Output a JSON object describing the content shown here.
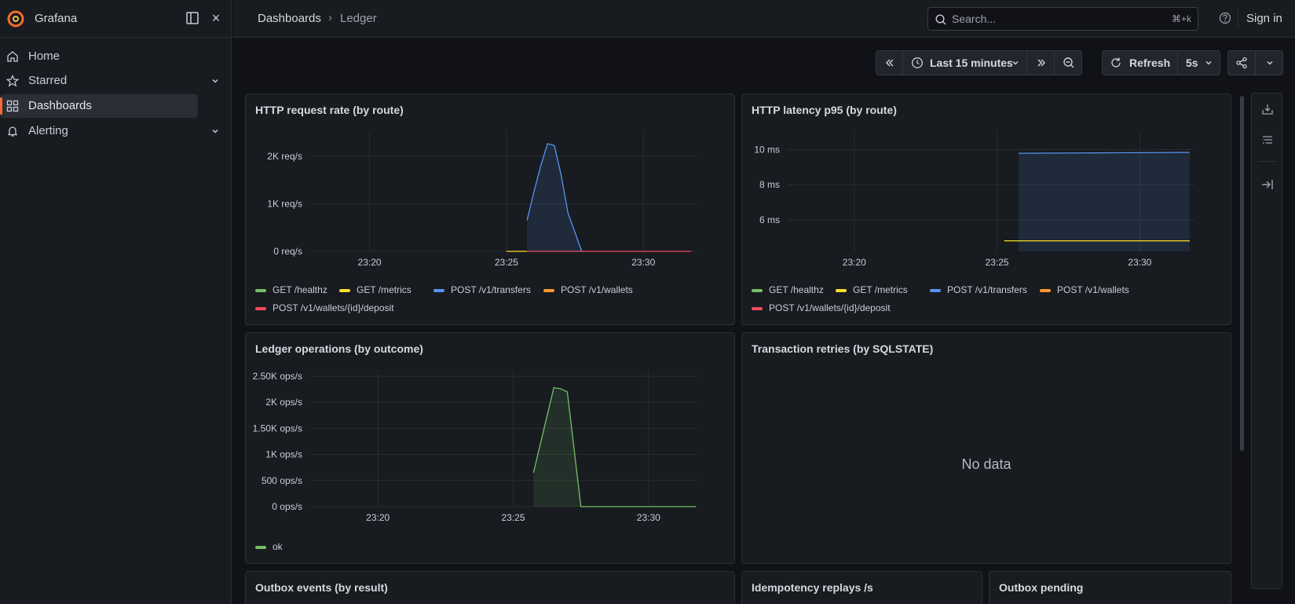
{
  "app": {
    "name": "Grafana",
    "sign_in": "Sign in",
    "close_symbol": "×"
  },
  "sidebar": {
    "items": [
      {
        "label": "Home",
        "icon": "home-icon",
        "active": false,
        "expandable": false
      },
      {
        "label": "Starred",
        "icon": "star-icon",
        "active": false,
        "expandable": true
      },
      {
        "label": "Dashboards",
        "icon": "apps-icon",
        "active": true,
        "expandable": false
      },
      {
        "label": "Alerting",
        "icon": "bell-icon",
        "active": false,
        "expandable": true
      }
    ]
  },
  "breadcrumb": {
    "items": [
      "Dashboards",
      "Ledger"
    ],
    "separator": "›"
  },
  "search": {
    "placeholder": "Search...",
    "shortcut": "⌘+k"
  },
  "toolbar": {
    "time_range": "Last 15 minutes",
    "refresh_label": "Refresh",
    "refresh_interval": "5s"
  },
  "colors": {
    "green": "#73bf69",
    "yellow": "#fade2a",
    "blue": "#5794f2",
    "orange": "#ff9830",
    "red": "#f2495c",
    "accent": "#f66b33"
  },
  "panels": [
    {
      "title": "HTTP request rate (by route)",
      "legend": [
        {
          "label": "GET /healthz",
          "color": "#73bf69"
        },
        {
          "label": "GET /metrics",
          "color": "#fade2a"
        },
        {
          "label": "POST /v1/transfers",
          "color": "#5794f2"
        },
        {
          "label": "POST /v1/wallets",
          "color": "#ff9830"
        },
        {
          "label": "POST /v1/wallets/{id}/deposit",
          "color": "#f2495c"
        }
      ]
    },
    {
      "title": "HTTP latency p95 (by route)",
      "legend": [
        {
          "label": "GET /healthz",
          "color": "#73bf69"
        },
        {
          "label": "GET /metrics",
          "color": "#fade2a"
        },
        {
          "label": "POST /v1/transfers",
          "color": "#5794f2"
        },
        {
          "label": "POST /v1/wallets",
          "color": "#ff9830"
        },
        {
          "label": "POST /v1/wallets/{id}/deposit",
          "color": "#f2495c"
        }
      ]
    },
    {
      "title": "Ledger operations (by outcome)",
      "legend": [
        {
          "label": "ok",
          "color": "#73bf69"
        }
      ]
    },
    {
      "title": "Transaction retries (by SQLSTATE)",
      "no_data": "No data"
    },
    {
      "title": "Outbox events (by result)"
    },
    {
      "title": "Idempotency replays /s"
    },
    {
      "title": "Outbox pending"
    }
  ],
  "chart_data": [
    {
      "type": "line",
      "x_ticks": [
        "23:20",
        "23:25",
        "23:30"
      ],
      "y_ticks": [
        "0 req/s",
        "1K req/s",
        "2K req/s"
      ],
      "ylim": [
        0,
        2400
      ],
      "series": [
        {
          "name": "POST /v1/transfers",
          "color": "#5794f2",
          "fill": true,
          "x": [
            "23:25:45",
            "23:26:00",
            "23:26:15",
            "23:26:30",
            "23:26:45",
            "23:27:00",
            "23:27:15",
            "23:27:45"
          ],
          "y": [
            650,
            1250,
            1800,
            2270,
            2230,
            1600,
            800,
            0
          ]
        },
        {
          "name": "GET /metrics",
          "color": "#fade2a",
          "x": [
            "23:25:00",
            "23:25:45"
          ],
          "y": [
            0,
            0
          ]
        },
        {
          "name": "POST /v1/wallets/{id}/deposit",
          "color": "#f2495c",
          "x": [
            "23:25:45",
            "23:31:45"
          ],
          "y": [
            0,
            0
          ]
        }
      ]
    },
    {
      "type": "area",
      "x_ticks": [
        "23:20",
        "23:25",
        "23:30"
      ],
      "y_ticks": [
        "6 ms",
        "8 ms",
        "10 ms"
      ],
      "ylim": [
        4.2,
        10.7
      ],
      "series": [
        {
          "name": "POST /v1/transfers",
          "color": "#5794f2",
          "fill": true,
          "x": [
            "23:25:45",
            "23:31:45"
          ],
          "y": [
            9.8,
            9.85
          ]
        },
        {
          "name": "GET /metrics",
          "color": "#fade2a",
          "x": [
            "23:25:15",
            "23:31:45"
          ],
          "y": [
            4.8,
            4.8
          ]
        }
      ]
    },
    {
      "type": "line",
      "x_ticks": [
        "23:20",
        "23:25",
        "23:30"
      ],
      "y_ticks": [
        "0 ops/s",
        "500 ops/s",
        "1K ops/s",
        "1.50K ops/s",
        "2K ops/s",
        "2.50K ops/s"
      ],
      "ylim": [
        0,
        2500
      ],
      "series": [
        {
          "name": "ok",
          "color": "#73bf69",
          "fill": true,
          "x": [
            "23:25:45",
            "23:26:30",
            "23:26:45",
            "23:27:00",
            "23:27:30",
            "23:31:45"
          ],
          "y": [
            650,
            2280,
            2260,
            2200,
            0,
            0
          ]
        }
      ]
    }
  ]
}
